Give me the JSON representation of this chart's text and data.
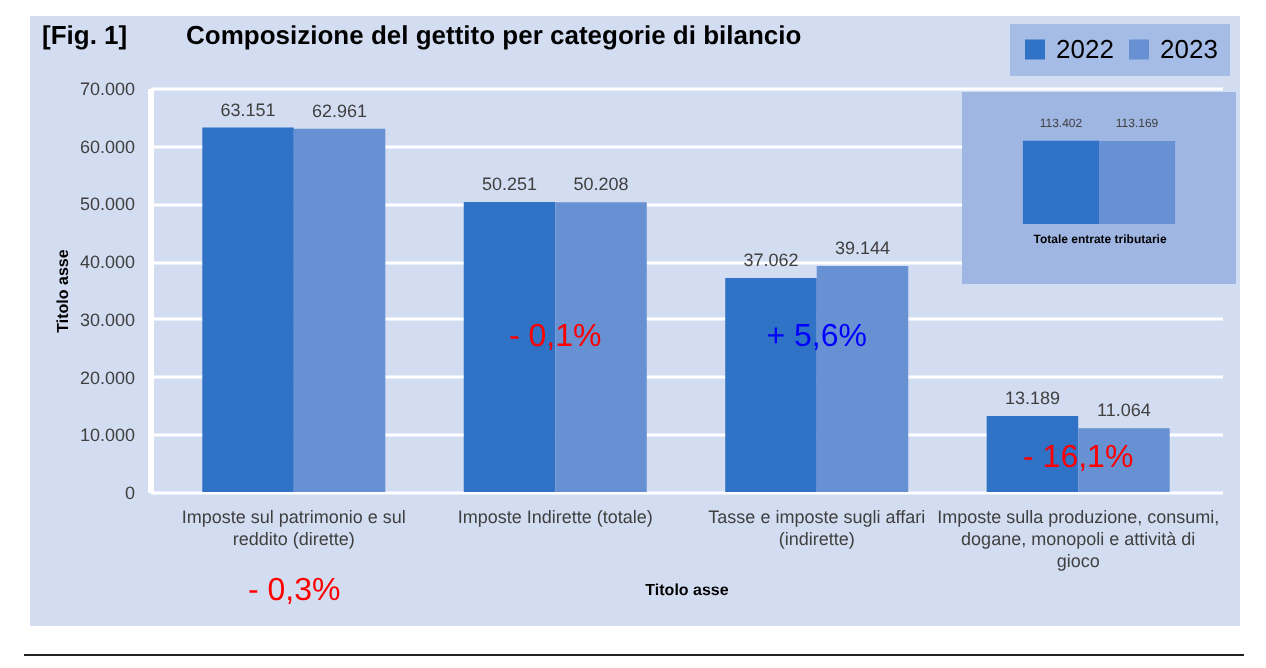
{
  "chart_data": [
    {
      "type": "bar",
      "title": "Composizione del gettito per categorie di bilancio",
      "xlabel": "Titolo asse",
      "ylabel": "Titolo asse",
      "categories": [
        "Imposte sul patrimonio e sul reddito (dirette)",
        "Imposte Indirette (totale)",
        "Tasse e imposte sugli affari (indirette)",
        "Imposte sulla produzione, consumi, dogane, monopoli e attività di gioco"
      ],
      "series": [
        {
          "name": "2022",
          "color": "#2f72c6",
          "values": [
            63151,
            50251,
            37062,
            13189
          ],
          "value_labels": [
            "63.151",
            "50.251",
            "37.062",
            "13.189"
          ]
        },
        {
          "name": "2023",
          "color": "#6791d2",
          "values": [
            62961,
            50208,
            39144,
            11064
          ],
          "value_labels": [
            "62.961",
            "50.208",
            "39.144",
            "11.064"
          ]
        }
      ],
      "ylim": [
        0,
        70000
      ],
      "yticks": [
        0,
        {
          "value": 10000,
          "label": "10.000"
        },
        {
          "value": 20000,
          "label": "20.000"
        },
        {
          "value": 30000,
          "label": "30.000"
        },
        {
          "value": 40000,
          "label": "40.000"
        },
        {
          "value": 50000,
          "label": "50.000"
        },
        {
          "value": 60000,
          "label": "60.000"
        },
        {
          "value": 70000,
          "label": "70.000"
        }
      ],
      "grid": "y",
      "legend": "top right",
      "annotations": [
        "[Fig. 1]",
        "- 0,3%",
        {
          "text": "- 0,1%",
          "x": "Imposte Indirette (totale)",
          "y": 27000
        },
        {
          "text": "+ 5,6%",
          "x": "Tasse e imposte sugli affari (indirette)",
          "y": 27000
        },
        {
          "text": "- 16,1%",
          "x": "Imposte sulla produzione, consumi, dogane, monopoli e attività di gioco",
          "y": 6000
        }
      ]
    },
    {
      "type": "bar",
      "xlabel": "Totale entrate tributarie",
      "categories": [
        null
      ],
      "series": [
        {
          "color": "#2f72c6",
          "values": [
            113402
          ],
          "value_labels": [
            "113.402"
          ]
        },
        {
          "color": "#6791d2",
          "values": [
            113169
          ],
          "value_labels": [
            "113.169"
          ]
        }
      ]
    }
  ]
}
